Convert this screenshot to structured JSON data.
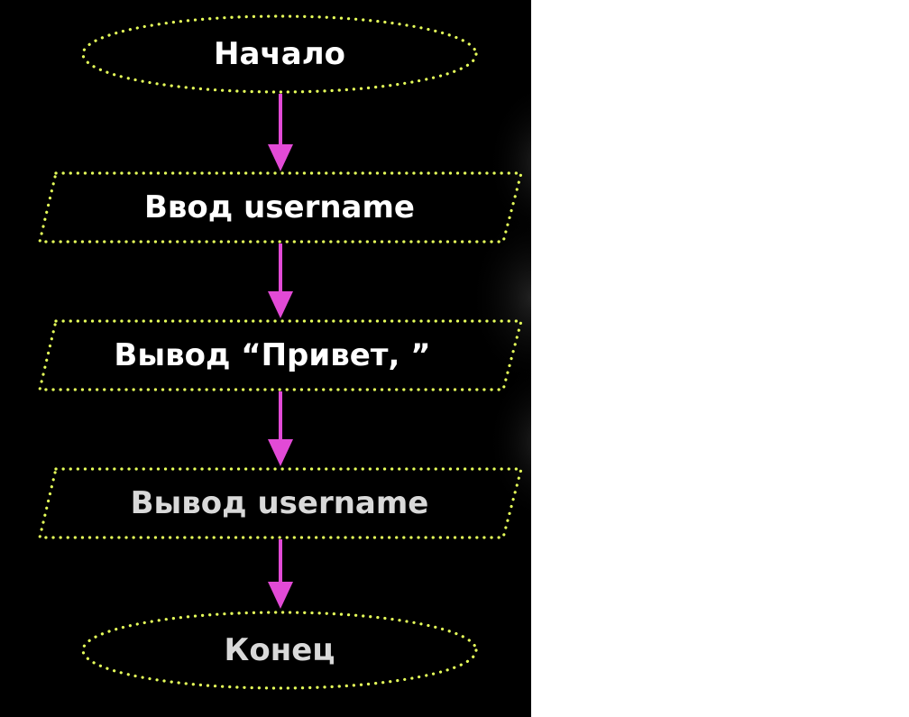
{
  "colors": {
    "background": "#000000",
    "outline": "#e6ff5a",
    "arrow": "#e24ad6",
    "text": "#ffffff",
    "text_dim": "#d9d9d9",
    "page": "#ffffff"
  },
  "nodes": {
    "start": "Начало",
    "input": "Ввод username",
    "output1": "Вывод “Привет, ”",
    "output2": "Вывод username",
    "end": "Конец"
  }
}
